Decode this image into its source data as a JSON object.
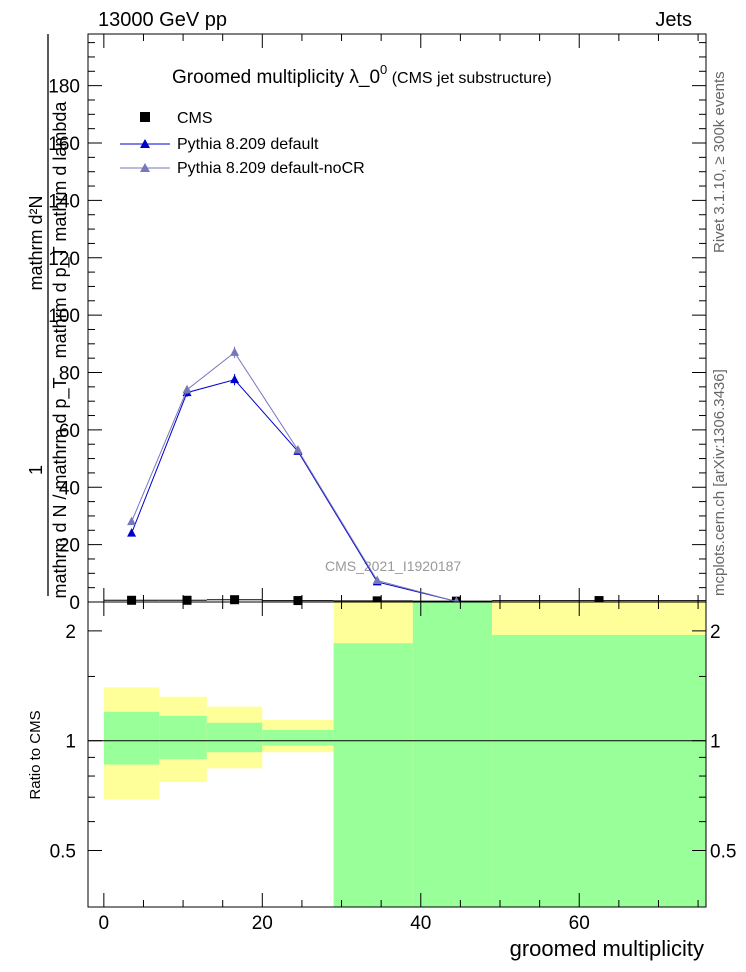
{
  "header": {
    "left": "13000 GeV pp",
    "right": "Jets"
  },
  "side_labels": {
    "rivet": "Rivet 3.1.10, ≥ 300k events",
    "mcplots": "mcplots.cern.ch [arXiv:1306.3436]"
  },
  "colors": {
    "cms": "#000000",
    "pythia_default": "#0000cc",
    "pythia_nocr": "#7777bb",
    "band_inner": "#99ff99",
    "band_outer": "#ffff99"
  },
  "chart_data": [
    {
      "type": "line",
      "title": "Groomed multiplicity  λ_0",
      "title_sup": "0",
      "title_suffix": " (CMS jet substructure)",
      "ylabel_numerator": "mathrm d²N",
      "ylabel_denominator": "mathrm d p_T mathrm d lambda",
      "ylabel_full_denominator": "mathrm d N / mathrm d p_T",
      "ylabel_one": "1",
      "watermark": "CMS_2021_I1920187",
      "xlim": [
        -2,
        76
      ],
      "ylim": [
        0,
        198
      ],
      "yticks": [
        0,
        20,
        40,
        60,
        80,
        100,
        120,
        140,
        160,
        180
      ],
      "legend_position": "top-left",
      "series": [
        {
          "name": "CMS",
          "marker": "square",
          "x": [
            3.5,
            10.5,
            16.5,
            24.5,
            34.5,
            44.5,
            62.5
          ],
          "y": [
            0.6,
            0.6,
            0.8,
            0.5,
            0.4,
            0.3,
            0.5
          ],
          "xerr": [
            [
              0,
              7
            ],
            [
              7,
              13
            ],
            [
              13,
              20
            ],
            [
              20,
              29
            ],
            [
              29,
              39
            ],
            [
              39,
              49
            ],
            [
              49,
              76
            ]
          ]
        },
        {
          "name": "Pythia 8.209 default",
          "marker": "triangle",
          "x": [
            3.5,
            10.5,
            16.5,
            24.5,
            34.5,
            44.5
          ],
          "y": [
            24,
            73,
            77.5,
            52.5,
            7,
            0.2
          ],
          "yerr": [
            0.8,
            1.5,
            2.0,
            1.0,
            0.5,
            0.1
          ]
        },
        {
          "name": "Pythia 8.209 default-noCR",
          "marker": "triangle",
          "x": [
            3.5,
            10.5,
            16.5,
            24.5,
            34.5,
            44.5
          ],
          "y": [
            28,
            74,
            87,
            53,
            7.5,
            0.2
          ],
          "yerr": [
            0.8,
            1.5,
            2.0,
            1.0,
            0.5,
            0.1
          ]
        }
      ]
    },
    {
      "type": "area",
      "ylabel": "Ratio to CMS",
      "xlabel": "groomed multiplicity",
      "xlim": [
        -2,
        76
      ],
      "ylim": [
        0.35,
        2.4
      ],
      "log_scale_y": true,
      "xticks": [
        0,
        20,
        40,
        60
      ],
      "yticks": [
        0.5,
        1,
        2
      ],
      "reference_line": 1,
      "bands": [
        {
          "x0": 0,
          "x1": 7,
          "inner": [
            0.86,
            1.2
          ],
          "outer": [
            0.69,
            1.4
          ]
        },
        {
          "x0": 7,
          "x1": 13,
          "inner": [
            0.89,
            1.17
          ],
          "outer": [
            0.77,
            1.32
          ]
        },
        {
          "x0": 13,
          "x1": 20,
          "inner": [
            0.93,
            1.12
          ],
          "outer": [
            0.84,
            1.24
          ]
        },
        {
          "x0": 20,
          "x1": 29,
          "inner": [
            0.97,
            1.07
          ],
          "outer": [
            0.93,
            1.14
          ]
        },
        {
          "x0": 29,
          "x1": 39,
          "inner": [
            0.35,
            1.85
          ],
          "outer": [
            0.35,
            2.4
          ]
        },
        {
          "x0": 39,
          "x1": 49,
          "inner": [
            0.35,
            2.4
          ],
          "outer": [
            0.35,
            2.4
          ]
        },
        {
          "x0": 49,
          "x1": 76,
          "inner": [
            0.35,
            1.95
          ],
          "outer": [
            0.35,
            2.4
          ]
        }
      ]
    }
  ]
}
